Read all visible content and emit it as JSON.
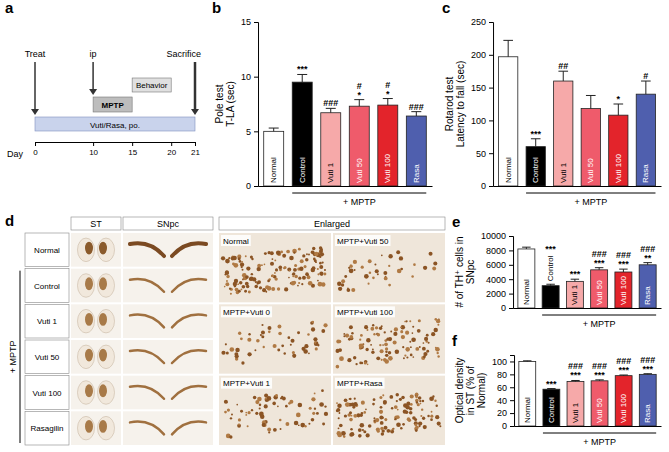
{
  "chart_data": [
    {
      "type": "bar",
      "panel": "b",
      "title": "Pole test",
      "ylabel": "T-LA (sec)",
      "categories": [
        "Normal",
        "Control",
        "Vuti 1",
        "Vuti 50",
        "Vuti 100",
        "Rasa"
      ],
      "values": [
        5.0,
        9.5,
        6.7,
        7.3,
        7.4,
        6.4
      ],
      "errors": [
        0.3,
        0.7,
        0.4,
        0.6,
        0.6,
        0.4
      ],
      "colors": [
        "#ffffff",
        "#000000",
        "#f6a9a9",
        "#ef5b6b",
        "#e3242b",
        "#4f5fae"
      ],
      "sig_vs_normal": [
        null,
        "***",
        null,
        "*",
        "*",
        null
      ],
      "sig_vs_control": [
        null,
        null,
        "###",
        "#",
        "#",
        "###"
      ],
      "group": {
        "label": "+ MPTP",
        "first": 1,
        "last": 5
      },
      "ylim": [
        0,
        15
      ],
      "yticks": [
        0,
        5,
        10,
        15
      ],
      "grid": false,
      "tick_labels": "y"
    },
    {
      "type": "bar",
      "panel": "c",
      "title": "Rotarod test",
      "ylabel": "Latency to fall (sec)",
      "categories": [
        "Normal",
        "Control",
        "Vuti 1",
        "Vuti 50",
        "Vuti 100",
        "Rasa"
      ],
      "values": [
        197,
        60,
        160,
        118,
        108,
        140
      ],
      "errors": [
        25,
        12,
        15,
        20,
        17,
        20
      ],
      "colors": [
        "#ffffff",
        "#000000",
        "#f6a9a9",
        "#ef5b6b",
        "#e3242b",
        "#4f5fae"
      ],
      "sig_vs_normal": [
        null,
        "***",
        null,
        null,
        "*",
        null
      ],
      "sig_vs_control": [
        null,
        null,
        "##",
        null,
        null,
        "#"
      ],
      "group": {
        "label": "+ MPTP",
        "first": 1,
        "last": 5
      },
      "ylim": [
        0,
        250
      ],
      "yticks": [
        0,
        50,
        100,
        150,
        200,
        250
      ],
      "grid": false,
      "tick_labels": "y"
    },
    {
      "type": "bar",
      "panel": "e",
      "ylabel": "# of TH⁺ cells in SNpc",
      "categories": [
        "Normal",
        "Control",
        "Vuti 1",
        "Vuti 50",
        "Vuti 100",
        "Rasa"
      ],
      "values": [
        8200,
        3100,
        3700,
        5300,
        5000,
        6000
      ],
      "errors": [
        250,
        200,
        300,
        300,
        400,
        300
      ],
      "colors": [
        "#ffffff",
        "#000000",
        "#f6a9a9",
        "#ef5b6b",
        "#e3242b",
        "#4f5fae"
      ],
      "sig_vs_normal": [
        null,
        "***",
        "***",
        "***",
        "***",
        "**"
      ],
      "sig_vs_control": [
        null,
        null,
        null,
        "###",
        "###",
        "###"
      ],
      "group": {
        "label": "+ MPTP",
        "first": 1,
        "last": 5
      },
      "ylim": [
        0,
        10000
      ],
      "yticks": [
        0,
        2000,
        4000,
        6000,
        8000,
        10000
      ],
      "grid": false,
      "tick_labels": "y"
    },
    {
      "type": "bar",
      "panel": "f",
      "ylabel": "Optical density in ST (% of Normal)",
      "categories": [
        "Normal",
        "Control",
        "Vuti 1",
        "Vuti 50",
        "Vuti 100",
        "Rasa"
      ],
      "values": [
        100,
        57,
        69,
        70,
        78,
        80
      ],
      "errors": [
        1,
        1,
        1.5,
        1.5,
        1,
        1
      ],
      "colors": [
        "#ffffff",
        "#000000",
        "#f6a9a9",
        "#ef5b6b",
        "#e3242b",
        "#4f5fae"
      ],
      "sig_vs_normal": [
        null,
        "***",
        "***",
        "***",
        "***",
        "***"
      ],
      "sig_vs_control": [
        null,
        null,
        "###",
        "###",
        "###",
        "###"
      ],
      "group": {
        "label": "+ MPTP",
        "first": 1,
        "last": 5
      },
      "ylim": [
        0,
        110
      ],
      "yticks": [
        0,
        20,
        40,
        60,
        80,
        100
      ],
      "grid": false,
      "tick_labels": "y"
    }
  ],
  "timeline": {
    "panel": "a",
    "day_label": "Day",
    "days": [
      0,
      10,
      15,
      20,
      21
    ],
    "treatment": {
      "label": "Vuti/Rasa, po.",
      "start": 0,
      "end": 21
    },
    "mptp": {
      "label": "MPTP",
      "start": 10,
      "end": 15
    },
    "behavior": {
      "label": "Behavior",
      "start": 15,
      "end": 20
    },
    "events": [
      {
        "label": "Treat",
        "day": 0
      },
      {
        "label": "ip",
        "day": 10
      },
      {
        "label": "Sacrifice",
        "day": 21
      }
    ]
  },
  "images": {
    "panel": "d",
    "columns": [
      "ST",
      "SNpc",
      "Enlarged"
    ],
    "rows": [
      "Normal",
      "Control",
      "Vuti 1",
      "Vuti 50",
      "Vuti 100",
      "Rasagilin"
    ],
    "group": {
      "label": "+ MPTP",
      "first": 1,
      "last": 5
    },
    "enlarged": [
      "Normal",
      "MPTP+Vuti 50",
      "MPTP+Vuti 0",
      "MPTP+Vuti 100",
      "MPTP+Vuti 1",
      "MPTP+Rasa"
    ]
  }
}
